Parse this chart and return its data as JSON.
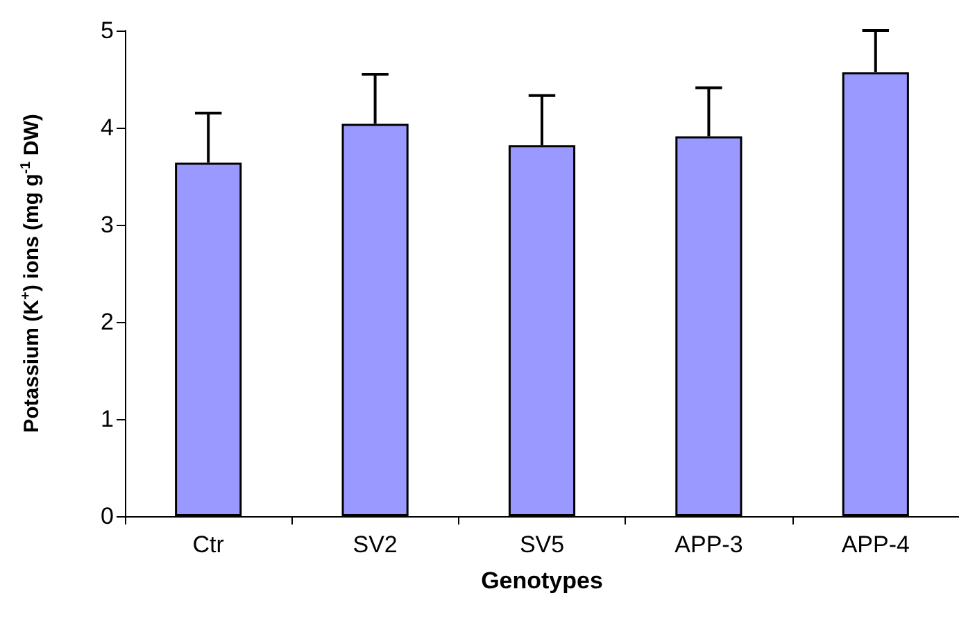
{
  "chart_data": {
    "type": "bar",
    "xlabel": "Genotypes",
    "ylabel": "Potassium (K$^{+}$) ions (mg g$^{-1}$ DW)",
    "categories": [
      "Ctr",
      "SV2",
      "SV5",
      "APP-3",
      "APP-4"
    ],
    "values": [
      3.64,
      4.04,
      3.82,
      3.91,
      4.57
    ],
    "errors": [
      [
        3.64,
        4.15
      ],
      [
        4.04,
        4.55
      ],
      [
        3.82,
        4.33
      ],
      [
        3.91,
        4.41
      ],
      [
        4.57,
        5
      ]
    ],
    "color": "#9999ff",
    "ylim": [
      0,
      5
    ],
    "yticks": [
      0,
      1,
      2,
      3,
      4,
      5
    ],
    "grid": false
  }
}
